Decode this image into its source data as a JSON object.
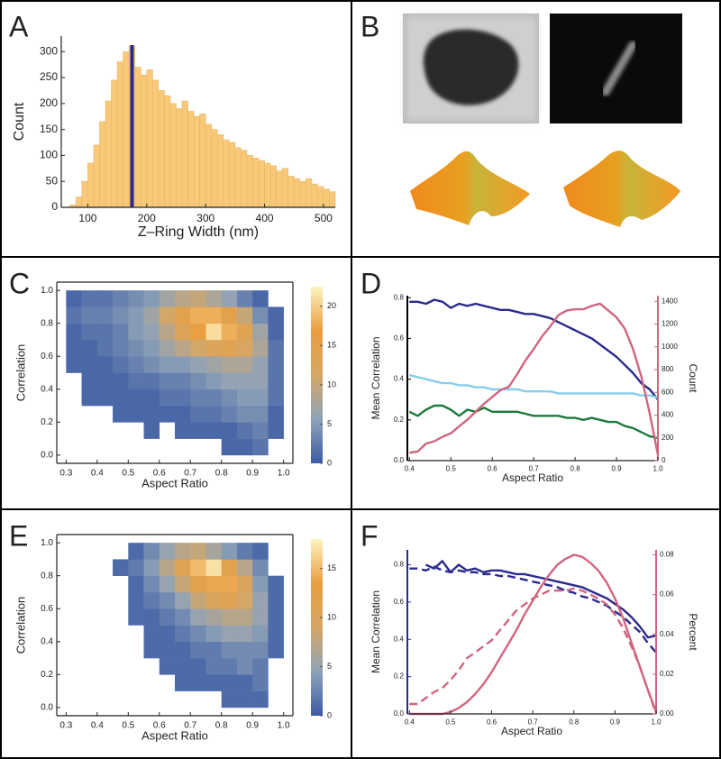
{
  "chart_data": [
    {
      "type": "histogram",
      "label": "A",
      "xlabel": "Z–Ring Width (nm)",
      "ylabel": "Count",
      "color": "#f9c97a",
      "marker": 175,
      "marker_color": "#2b2a8c",
      "bins": [
        70,
        80,
        90,
        100,
        110,
        120,
        130,
        140,
        150,
        160,
        170,
        180,
        190,
        200,
        210,
        220,
        230,
        240,
        250,
        260,
        270,
        280,
        290,
        300,
        310,
        320,
        330,
        340,
        350,
        360,
        370,
        380,
        390,
        400,
        410,
        420,
        430,
        440,
        450,
        460,
        470,
        480,
        490,
        500,
        510,
        520
      ],
      "values": [
        5,
        20,
        50,
        85,
        120,
        165,
        205,
        245,
        280,
        300,
        310,
        270,
        255,
        265,
        245,
        225,
        215,
        200,
        190,
        205,
        185,
        175,
        180,
        160,
        150,
        140,
        130,
        125,
        115,
        110,
        100,
        95,
        90,
        85,
        80,
        70,
        75,
        60,
        55,
        50,
        55,
        45,
        40,
        35,
        30
      ],
      "xlim": [
        55,
        520
      ],
      "ylim": [
        0,
        330
      ],
      "xticks": [
        100,
        200,
        300,
        400,
        500
      ],
      "yticks": [
        0,
        50,
        100,
        150,
        200,
        250,
        300
      ]
    },
    {
      "type": "image",
      "label": "B"
    },
    {
      "type": "heatmap",
      "label": "C",
      "xlabel": "Aspect Ratio",
      "ylabel": "Correlation",
      "frame": true,
      "colormap": [
        "#3b5ba5",
        "#8fa3b8",
        "#d5a766",
        "#e99e3f",
        "#fdf3c0"
      ],
      "clim": [
        0,
        22.5
      ],
      "colorbar_ticks": [
        0,
        5,
        10,
        15,
        20
      ],
      "x_bins": [
        0.3,
        0.35,
        0.4,
        0.45,
        0.5,
        0.55,
        0.6,
        0.65,
        0.7,
        0.75,
        0.8,
        0.85,
        0.9,
        0.95,
        1.0
      ],
      "y_bins": [
        0,
        0.1,
        0.2,
        0.3,
        0.4,
        0.5,
        0.6,
        0.7,
        0.8,
        0.9,
        1.0
      ],
      "z": [
        [
          0,
          0,
          0,
          0,
          0,
          0,
          0,
          0,
          0,
          0,
          1,
          1,
          2,
          0
        ],
        [
          0,
          0,
          0,
          0,
          0,
          1,
          0,
          1,
          1,
          1,
          1,
          2,
          3,
          1
        ],
        [
          0,
          0,
          0,
          1,
          1,
          1,
          1,
          1,
          2,
          2,
          3,
          4,
          4,
          1
        ],
        [
          0,
          1,
          1,
          1,
          1,
          1,
          2,
          2,
          3,
          3,
          4,
          5,
          5,
          2
        ],
        [
          0,
          1,
          1,
          1,
          2,
          2,
          3,
          3,
          4,
          5,
          6,
          6,
          6,
          2
        ],
        [
          1,
          1,
          1,
          2,
          3,
          4,
          5,
          5,
          6,
          7,
          8,
          8,
          6,
          2
        ],
        [
          1,
          1,
          2,
          3,
          4,
          5,
          7,
          9,
          11,
          13,
          14,
          12,
          8,
          2
        ],
        [
          1,
          2,
          2,
          3,
          5,
          6,
          9,
          13,
          17,
          21,
          18,
          14,
          7,
          1
        ],
        [
          2,
          3,
          3,
          4,
          5,
          7,
          11,
          15,
          18,
          18,
          15,
          10,
          4,
          1
        ],
        [
          1,
          2,
          2,
          3,
          4,
          5,
          7,
          9,
          10,
          8,
          6,
          3,
          1,
          0
        ]
      ],
      "xlim": [
        0.27,
        1.03
      ],
      "ylim": [
        -0.05,
        1.05
      ],
      "xticks": [
        0.3,
        0.4,
        0.5,
        0.6,
        0.7,
        0.8,
        0.9,
        {
          "value": 1,
          "label": "1.0"
        }
      ],
      "yticks": [
        {
          "value": 0,
          "label": "0.0"
        },
        0.2,
        0.4,
        0.6,
        0.8,
        {
          "value": 1,
          "label": "1.0"
        }
      ]
    },
    {
      "type": "line",
      "label": "D",
      "xlabel": "Aspect Ratio",
      "ylabel": "Mean Correlation",
      "y2label": "Count",
      "y_color": "#000000",
      "y2_color": "#d0657f",
      "x": [
        0.4,
        0.42,
        0.44,
        0.46,
        0.48,
        0.5,
        0.52,
        0.54,
        0.56,
        0.58,
        0.6,
        0.62,
        0.64,
        0.66,
        0.68,
        0.7,
        0.72,
        0.74,
        0.76,
        0.78,
        0.8,
        0.82,
        0.84,
        0.86,
        0.88,
        0.9,
        0.92,
        0.94,
        0.96,
        0.98,
        1.0
      ],
      "series": [
        {
          "color": "#2b2a8c",
          "values": [
            0.78,
            0.78,
            0.77,
            0.79,
            0.78,
            0.75,
            0.77,
            0.76,
            0.77,
            0.76,
            0.75,
            0.74,
            0.74,
            0.73,
            0.72,
            0.72,
            0.71,
            0.7,
            0.68,
            0.66,
            0.64,
            0.62,
            0.6,
            0.57,
            0.54,
            0.51,
            0.47,
            0.43,
            0.38,
            0.35,
            0.3
          ]
        },
        {
          "color": "#87ceeb",
          "values": [
            0.42,
            0.41,
            0.4,
            0.39,
            0.38,
            0.38,
            0.37,
            0.37,
            0.36,
            0.36,
            0.35,
            0.35,
            0.35,
            0.35,
            0.34,
            0.34,
            0.34,
            0.34,
            0.33,
            0.33,
            0.33,
            0.33,
            0.33,
            0.33,
            0.33,
            0.33,
            0.33,
            0.33,
            0.32,
            0.32,
            0.31
          ]
        },
        {
          "color": "#1e7a3c",
          "values": [
            0.24,
            0.22,
            0.25,
            0.27,
            0.27,
            0.25,
            0.22,
            0.25,
            0.24,
            0.26,
            0.24,
            0.24,
            0.24,
            0.24,
            0.23,
            0.22,
            0.22,
            0.22,
            0.22,
            0.21,
            0.21,
            0.2,
            0.21,
            0.2,
            0.19,
            0.19,
            0.17,
            0.16,
            0.14,
            0.12,
            0.11
          ]
        },
        {
          "color": "#d0657f",
          "axis": "y2",
          "values": [
            70,
            80,
            150,
            170,
            210,
            240,
            300,
            360,
            430,
            500,
            560,
            620,
            650,
            760,
            880,
            980,
            1090,
            1180,
            1280,
            1320,
            1330,
            1330,
            1360,
            1380,
            1320,
            1260,
            1160,
            980,
            740,
            420,
            50
          ]
        }
      ],
      "xlim": [
        0.395,
        1.0
      ],
      "ylim": [
        0,
        0.81
      ],
      "y2lim": [
        0,
        1450
      ],
      "xticks": [
        0.4,
        0.5,
        0.6,
        0.7,
        0.8,
        0.9,
        {
          "value": 1,
          "label": "1.0"
        }
      ],
      "yticks": [
        {
          "value": 0,
          "label": "0.0"
        },
        0.2,
        0.4,
        0.6,
        0.8
      ],
      "y2ticks": [
        0,
        200,
        400,
        600,
        800,
        1000,
        1200,
        1400
      ]
    },
    {
      "type": "heatmap",
      "label": "E",
      "xlabel": "Aspect Ratio",
      "ylabel": "Correlation",
      "frame": true,
      "colormap": [
        "#3b5ba5",
        "#8fa3b8",
        "#d5a766",
        "#e99e3f",
        "#fdf3c0"
      ],
      "clim": [
        0,
        18
      ],
      "colorbar_ticks": [
        0,
        5,
        10,
        15
      ],
      "x_bins": [
        0.3,
        0.35,
        0.4,
        0.45,
        0.5,
        0.55,
        0.6,
        0.65,
        0.7,
        0.75,
        0.8,
        0.85,
        0.9,
        0.95,
        1.0
      ],
      "y_bins": [
        0,
        0.1,
        0.2,
        0.3,
        0.4,
        0.5,
        0.6,
        0.7,
        0.8,
        0.9,
        1.0
      ],
      "z": [
        [
          0,
          0,
          0,
          0,
          0,
          0,
          0,
          0,
          0,
          0,
          1,
          1,
          1,
          0
        ],
        [
          0,
          0,
          0,
          0,
          0,
          0,
          0,
          1,
          1,
          1,
          1,
          1,
          2,
          0
        ],
        [
          0,
          0,
          0,
          0,
          0,
          0,
          1,
          1,
          1,
          2,
          2,
          3,
          2,
          0
        ],
        [
          0,
          0,
          0,
          0,
          0,
          1,
          1,
          1,
          2,
          2,
          3,
          3,
          3,
          1
        ],
        [
          0,
          0,
          0,
          0,
          0,
          1,
          1,
          2,
          3,
          4,
          5,
          5,
          4,
          1
        ],
        [
          0,
          0,
          0,
          0,
          1,
          1,
          2,
          3,
          5,
          6,
          7,
          7,
          5,
          1
        ],
        [
          0,
          0,
          0,
          0,
          1,
          2,
          3,
          5,
          8,
          10,
          11,
          9,
          5,
          1
        ],
        [
          0,
          0,
          0,
          0,
          1,
          3,
          5,
          8,
          12,
          14,
          14,
          10,
          4,
          1
        ],
        [
          0,
          0,
          0,
          1,
          2,
          4,
          7,
          11,
          15,
          17,
          12,
          7,
          3,
          0
        ],
        [
          0,
          0,
          0,
          0,
          1,
          3,
          5,
          7,
          8,
          6,
          4,
          2,
          1,
          0
        ]
      ],
      "xlim": [
        0.27,
        1.03
      ],
      "ylim": [
        -0.05,
        1.05
      ],
      "xticks": [
        0.3,
        0.4,
        0.5,
        0.6,
        0.7,
        0.8,
        0.9,
        {
          "value": 1,
          "label": "1.0"
        }
      ],
      "yticks": [
        {
          "value": 0,
          "label": "0.0"
        },
        0.2,
        0.4,
        0.6,
        0.8,
        {
          "value": 1,
          "label": "1.0"
        }
      ]
    },
    {
      "type": "line",
      "label": "F",
      "xlabel": "Aspect Ratio",
      "ylabel": "Mean Correlation",
      "y2label": "Percent",
      "y_color": "#2b2a8c",
      "y2_color": "#d0657f",
      "x": [
        0.4,
        0.42,
        0.44,
        0.46,
        0.48,
        0.5,
        0.52,
        0.54,
        0.56,
        0.58,
        0.6,
        0.62,
        0.64,
        0.66,
        0.68,
        0.7,
        0.72,
        0.74,
        0.76,
        0.78,
        0.8,
        0.82,
        0.84,
        0.86,
        0.88,
        0.9,
        0.92,
        0.94,
        0.96,
        0.98,
        1.0
      ],
      "series": [
        {
          "color": "#2b2a8c",
          "values": [
            null,
            null,
            0.8,
            0.78,
            0.82,
            0.76,
            0.8,
            0.77,
            0.78,
            0.76,
            0.77,
            0.77,
            0.76,
            0.75,
            0.75,
            0.74,
            0.73,
            0.72,
            0.71,
            0.7,
            0.69,
            0.68,
            0.66,
            0.64,
            0.62,
            0.59,
            0.56,
            0.52,
            0.47,
            0.41,
            0.42
          ]
        },
        {
          "color": "#2b2a8c",
          "dash": true,
          "values": [
            0.78,
            0.78,
            0.77,
            0.79,
            0.77,
            0.76,
            0.77,
            0.76,
            0.76,
            0.75,
            0.75,
            0.74,
            0.74,
            0.73,
            0.72,
            0.71,
            0.7,
            0.69,
            0.68,
            0.66,
            0.65,
            0.63,
            0.62,
            0.6,
            0.58,
            0.55,
            0.52,
            0.48,
            0.44,
            0.38,
            0.33
          ]
        },
        {
          "color": "#d0657f",
          "axis": "y2",
          "values": [
            0,
            0,
            0,
            0,
            0,
            0.001,
            0.003,
            0.006,
            0.01,
            0.015,
            0.021,
            0.028,
            0.035,
            0.042,
            0.05,
            0.057,
            0.064,
            0.07,
            0.075,
            0.078,
            0.08,
            0.079,
            0.076,
            0.072,
            0.066,
            0.058,
            0.048,
            0.036,
            0.024,
            0.012,
            0.001
          ]
        },
        {
          "color": "#d0657f",
          "axis": "y2",
          "dash": true,
          "values": [
            0.005,
            0.005,
            0.008,
            0.011,
            0.013,
            0.017,
            0.022,
            0.028,
            0.031,
            0.034,
            0.037,
            0.042,
            0.047,
            0.052,
            0.055,
            0.058,
            0.06,
            0.062,
            0.062,
            0.062,
            0.063,
            0.062,
            0.06,
            0.058,
            0.055,
            0.05,
            0.043,
            0.034,
            0.024,
            0.012,
            0
          ]
        }
      ],
      "xlim": [
        0.395,
        1.0
      ],
      "ylim": [
        0,
        0.88
      ],
      "y2lim": [
        0,
        0.0825
      ],
      "xticks": [
        0.4,
        0.5,
        0.6,
        0.7,
        0.8,
        0.9,
        {
          "value": 1,
          "label": "1.0"
        }
      ],
      "yticks": [
        {
          "value": 0,
          "label": "0.0"
        },
        0.2,
        0.4,
        0.6,
        0.8
      ],
      "y2ticks": [
        {
          "value": 0,
          "label": "0.00"
        },
        0.02,
        0.04,
        0.06,
        0.08
      ]
    }
  ]
}
